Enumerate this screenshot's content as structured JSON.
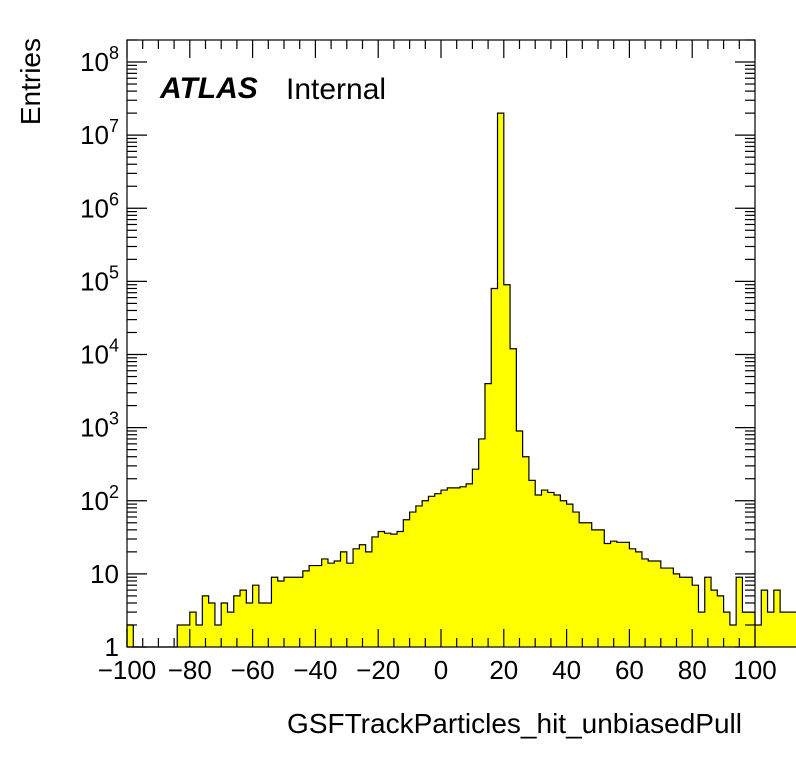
{
  "label": {
    "experiment": "ATLAS",
    "status": "Internal"
  },
  "chart_data": {
    "type": "bar",
    "histogram": true,
    "xlabel": "GSFTrackParticles_hit_unbiasedPull",
    "ylabel": "Entries",
    "xlim": [
      -100,
      100
    ],
    "ylim": [
      1,
      200000000
    ],
    "yscale": "log",
    "bin_width": 2,
    "x_ticks": [
      "−100",
      "−80",
      "−60",
      "−40",
      "−20",
      "0",
      "20",
      "40",
      "60",
      "80",
      "100"
    ],
    "y_ticks": [
      {
        "base": "1",
        "exp": ""
      },
      {
        "base": "10",
        "exp": ""
      },
      {
        "base": "10",
        "exp": "2"
      },
      {
        "base": "10",
        "exp": "3"
      },
      {
        "base": "10",
        "exp": "4"
      },
      {
        "base": "10",
        "exp": "5"
      },
      {
        "base": "10",
        "exp": "6"
      },
      {
        "base": "10",
        "exp": "7"
      },
      {
        "base": "10",
        "exp": "8"
      }
    ],
    "fill_color": "#ffff00",
    "line_color": "#000000",
    "series": [
      {
        "values": [
          2,
          1,
          1,
          0,
          1,
          1,
          1,
          0,
          2,
          2,
          3,
          2,
          5,
          4,
          2,
          4,
          3,
          5,
          6,
          4,
          7,
          4,
          4,
          9,
          8,
          9,
          9,
          9,
          11,
          13,
          13,
          16,
          14,
          15,
          20,
          14,
          22,
          25,
          20,
          32,
          38,
          36,
          35,
          38,
          55,
          70,
          85,
          100,
          115,
          125,
          140,
          150,
          150,
          155,
          170,
          270,
          700,
          4000,
          80000,
          20000000,
          90000,
          12000,
          900,
          400,
          190,
          120,
          140,
          130,
          120,
          100,
          90,
          70,
          50,
          50,
          40,
          40,
          26,
          28,
          27,
          27,
          22,
          20,
          16,
          15,
          15,
          12,
          12,
          10,
          9,
          9,
          7,
          3,
          9,
          6,
          5,
          3,
          2,
          9,
          3,
          3,
          2,
          6,
          3,
          6,
          3,
          3,
          3,
          3,
          1,
          1,
          0,
          1,
          1,
          0,
          0,
          0
        ],
        "x_start": -100
      }
    ]
  }
}
